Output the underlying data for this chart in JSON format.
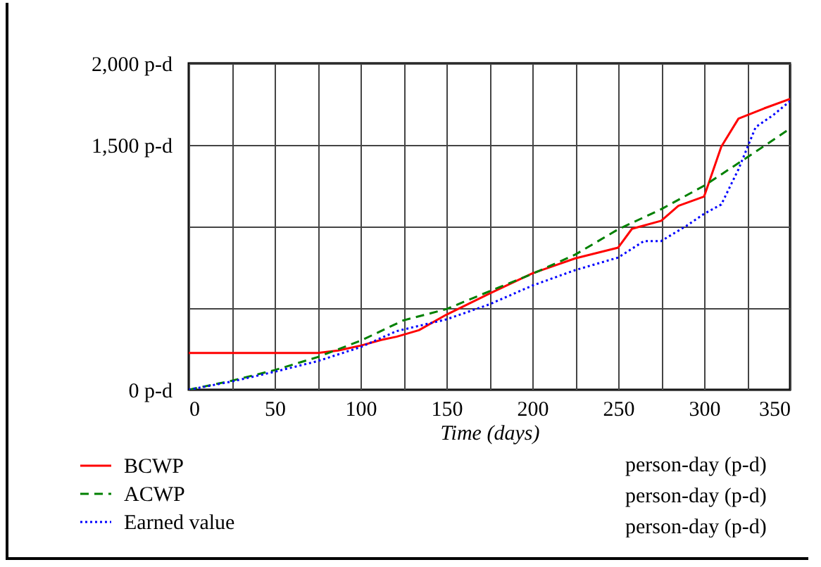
{
  "chart_data": {
    "type": "line",
    "xlabel": "Time (days)",
    "legend": "bottom",
    "grid": true,
    "xlim": [
      0,
      350
    ],
    "xticks": [
      0,
      {
        "value": 25,
        "label": null
      },
      50,
      {
        "value": 75,
        "label": null
      },
      100,
      {
        "value": 125,
        "label": null
      },
      150,
      {
        "value": 175,
        "label": null
      },
      200,
      {
        "value": 225,
        "label": null
      },
      250,
      {
        "value": 275,
        "label": null
      },
      300,
      {
        "value": 325,
        "label": null
      },
      350
    ],
    "ylim": [
      0,
      2000
    ],
    "yticks": [
      {
        "value": 0,
        "label": "0 p-d"
      },
      {
        "value": 500,
        "label": null
      },
      {
        "value": 1000,
        "label": null
      },
      {
        "value": 1500,
        "label": "1,500 p-d"
      },
      {
        "value": 2000,
        "label": "2,000 p-d"
      }
    ],
    "annotations": [
      "person-day (p-d)",
      "person-day (p-d)",
      "person-day (p-d)"
    ],
    "series": [
      {
        "name": "BCWP",
        "color": "#ff0000",
        "line_style": "solid",
        "x": [
          0,
          75,
          87,
          100,
          112,
          121,
          134,
          150,
          175,
          200,
          225,
          250,
          258,
          275,
          285,
          300,
          310,
          320,
          335,
          350
        ],
        "values": [
          225,
          225,
          240,
          270,
          305,
          325,
          365,
          460,
          589,
          713,
          805,
          871,
          986,
          1035,
          1127,
          1184,
          1489,
          1661,
          1724,
          1782
        ]
      },
      {
        "name": "ACWP",
        "color": "#008000",
        "line_style": "dashed",
        "x": [
          0,
          25,
          50,
          75,
          100,
          125,
          150,
          175,
          200,
          225,
          250,
          275,
          300,
          325,
          350
        ],
        "values": [
          0,
          55,
          120,
          200,
          300,
          425,
          494,
          603,
          710,
          828,
          983,
          1106,
          1250,
          1423,
          1600
        ]
      },
      {
        "name": "Earned value",
        "color": "#0000ff",
        "line_style": "dotted",
        "x": [
          0,
          25,
          50,
          75,
          100,
          121,
          150,
          175,
          200,
          225,
          250,
          265,
          275,
          290,
          300,
          310,
          320,
          330,
          340,
          350
        ],
        "values": [
          0,
          50,
          110,
          175,
          261,
          359,
          431,
          523,
          638,
          733,
          810,
          911,
          911,
          1006,
          1078,
          1135,
          1351,
          1609,
          1681,
          1768
        ]
      }
    ]
  }
}
